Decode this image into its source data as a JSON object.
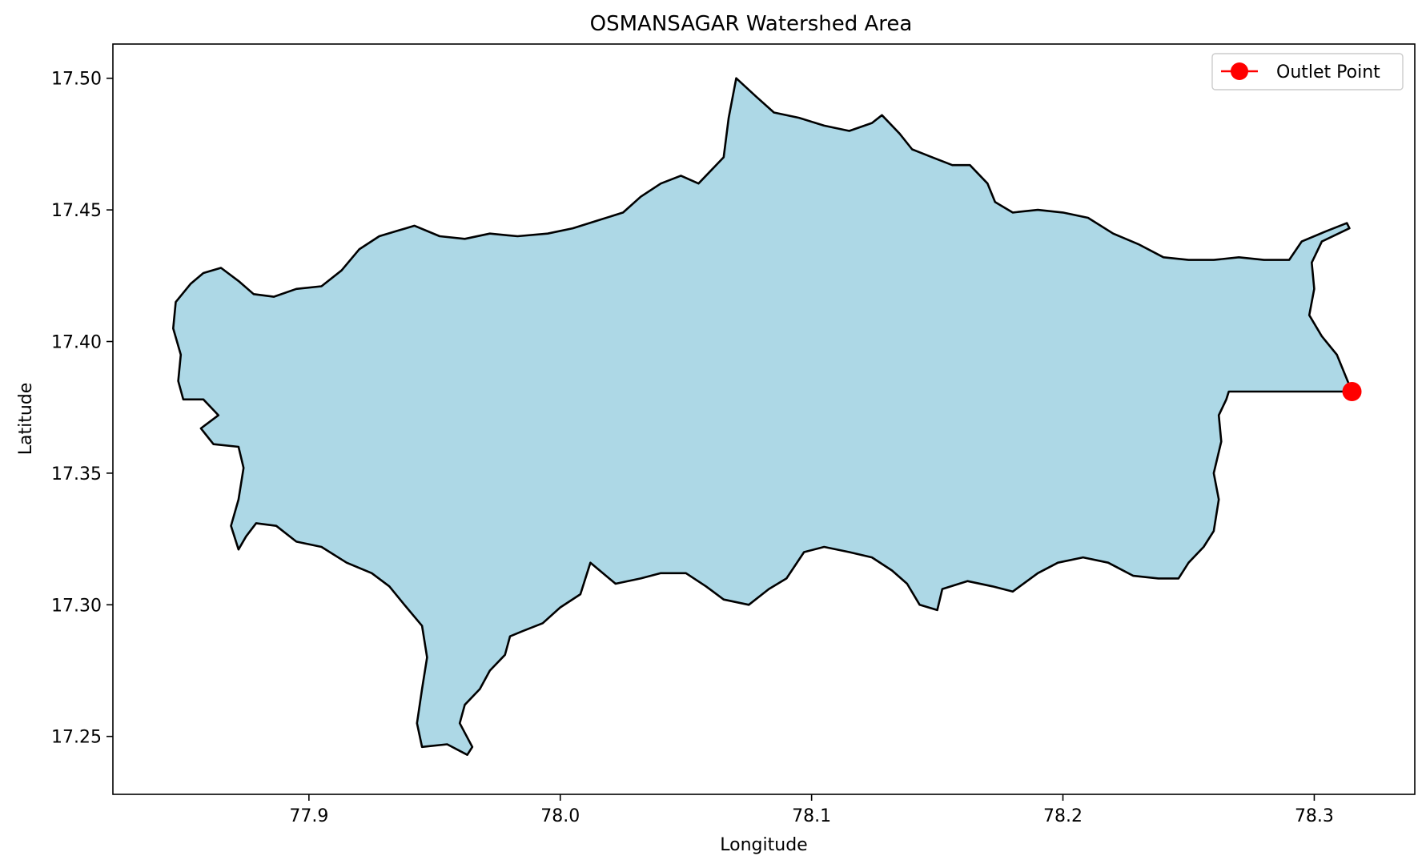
{
  "chart_data": {
    "type": "map",
    "title": "OSMANSAGAR Watershed Area",
    "xlabel": "Longitude",
    "ylabel": "Latitude",
    "xlim": [
      77.822,
      78.34
    ],
    "ylim": [
      17.228,
      17.513
    ],
    "xticks": [
      77.9,
      78.0,
      78.1,
      78.2,
      78.3
    ],
    "xtick_labels": [
      "77.9",
      "78.0",
      "78.1",
      "78.2",
      "78.3"
    ],
    "yticks": [
      17.25,
      17.3,
      17.35,
      17.4,
      17.45,
      17.5
    ],
    "ytick_labels": [
      "17.25",
      "17.30",
      "17.35",
      "17.40",
      "17.45",
      "17.50"
    ],
    "grid": false,
    "legend": {
      "placement": "top-right",
      "entries": [
        "Outlet Point"
      ]
    },
    "watershed": {
      "fill": "#add8e6",
      "edge": "#000000",
      "boundary": [
        [
          77.865,
          17.428
        ],
        [
          77.872,
          17.423
        ],
        [
          77.878,
          17.418
        ],
        [
          77.886,
          17.417
        ],
        [
          77.895,
          17.42
        ],
        [
          77.905,
          17.421
        ],
        [
          77.913,
          17.427
        ],
        [
          77.92,
          17.435
        ],
        [
          77.928,
          17.44
        ],
        [
          77.935,
          17.442
        ],
        [
          77.942,
          17.444
        ],
        [
          77.952,
          17.44
        ],
        [
          77.962,
          17.439
        ],
        [
          77.972,
          17.441
        ],
        [
          77.983,
          17.44
        ],
        [
          77.995,
          17.441
        ],
        [
          78.005,
          17.443
        ],
        [
          78.015,
          17.446
        ],
        [
          78.025,
          17.449
        ],
        [
          78.032,
          17.455
        ],
        [
          78.04,
          17.46
        ],
        [
          78.048,
          17.463
        ],
        [
          78.055,
          17.46
        ],
        [
          78.06,
          17.465
        ],
        [
          78.065,
          17.47
        ],
        [
          78.067,
          17.485
        ],
        [
          78.07,
          17.5
        ],
        [
          78.078,
          17.493
        ],
        [
          78.085,
          17.487
        ],
        [
          78.095,
          17.485
        ],
        [
          78.105,
          17.482
        ],
        [
          78.115,
          17.48
        ],
        [
          78.124,
          17.483
        ],
        [
          78.128,
          17.486
        ],
        [
          78.135,
          17.479
        ],
        [
          78.14,
          17.473
        ],
        [
          78.148,
          17.47
        ],
        [
          78.156,
          17.467
        ],
        [
          78.163,
          17.467
        ],
        [
          78.17,
          17.46
        ],
        [
          78.173,
          17.453
        ],
        [
          78.18,
          17.449
        ],
        [
          78.19,
          17.45
        ],
        [
          78.2,
          17.449
        ],
        [
          78.21,
          17.447
        ],
        [
          78.22,
          17.441
        ],
        [
          78.23,
          17.437
        ],
        [
          78.24,
          17.432
        ],
        [
          78.25,
          17.431
        ],
        [
          78.26,
          17.431
        ],
        [
          78.27,
          17.432
        ],
        [
          78.28,
          17.431
        ],
        [
          78.29,
          17.431
        ],
        [
          78.295,
          17.438
        ],
        [
          78.305,
          17.442
        ],
        [
          78.313,
          17.445
        ],
        [
          78.314,
          17.443
        ],
        [
          78.303,
          17.438
        ],
        [
          78.299,
          17.43
        ],
        [
          78.3,
          17.42
        ],
        [
          78.298,
          17.41
        ],
        [
          78.303,
          17.402
        ],
        [
          78.309,
          17.395
        ],
        [
          78.312,
          17.388
        ],
        [
          78.315,
          17.381
        ],
        [
          78.305,
          17.381
        ],
        [
          78.29,
          17.381
        ],
        [
          78.275,
          17.381
        ],
        [
          78.266,
          17.381
        ],
        [
          78.265,
          17.378
        ],
        [
          78.262,
          17.372
        ],
        [
          78.263,
          17.362
        ],
        [
          78.26,
          17.35
        ],
        [
          78.262,
          17.34
        ],
        [
          78.26,
          17.328
        ],
        [
          78.256,
          17.322
        ],
        [
          78.25,
          17.316
        ],
        [
          78.246,
          17.31
        ],
        [
          78.238,
          17.31
        ],
        [
          78.228,
          17.311
        ],
        [
          78.218,
          17.316
        ],
        [
          78.208,
          17.318
        ],
        [
          78.198,
          17.316
        ],
        [
          78.19,
          17.312
        ],
        [
          78.18,
          17.305
        ],
        [
          78.172,
          17.307
        ],
        [
          78.162,
          17.309
        ],
        [
          78.152,
          17.306
        ],
        [
          78.15,
          17.298
        ],
        [
          78.143,
          17.3
        ],
        [
          78.138,
          17.308
        ],
        [
          78.132,
          17.313
        ],
        [
          78.124,
          17.318
        ],
        [
          78.115,
          17.32
        ],
        [
          78.105,
          17.322
        ],
        [
          78.097,
          17.32
        ],
        [
          78.09,
          17.31
        ],
        [
          78.083,
          17.306
        ],
        [
          78.075,
          17.3
        ],
        [
          78.065,
          17.302
        ],
        [
          78.058,
          17.307
        ],
        [
          78.05,
          17.312
        ],
        [
          78.04,
          17.312
        ],
        [
          78.032,
          17.31
        ],
        [
          78.022,
          17.308
        ],
        [
          78.012,
          17.316
        ],
        [
          78.008,
          17.304
        ],
        [
          78.0,
          17.299
        ],
        [
          77.993,
          17.293
        ],
        [
          77.985,
          17.29
        ],
        [
          77.98,
          17.288
        ],
        [
          77.978,
          17.281
        ],
        [
          77.972,
          17.275
        ],
        [
          77.968,
          17.268
        ],
        [
          77.962,
          17.262
        ],
        [
          77.96,
          17.255
        ],
        [
          77.965,
          17.246
        ],
        [
          77.963,
          17.243
        ],
        [
          77.955,
          17.247
        ],
        [
          77.945,
          17.246
        ],
        [
          77.943,
          17.255
        ],
        [
          77.945,
          17.268
        ],
        [
          77.947,
          17.28
        ],
        [
          77.945,
          17.292
        ],
        [
          77.938,
          17.3
        ],
        [
          77.932,
          17.307
        ],
        [
          77.925,
          17.312
        ],
        [
          77.915,
          17.316
        ],
        [
          77.905,
          17.322
        ],
        [
          77.895,
          17.324
        ],
        [
          77.887,
          17.33
        ],
        [
          77.879,
          17.331
        ],
        [
          77.875,
          17.326
        ],
        [
          77.872,
          17.321
        ],
        [
          77.869,
          17.33
        ],
        [
          77.872,
          17.34
        ],
        [
          77.874,
          17.352
        ],
        [
          77.872,
          17.36
        ],
        [
          77.862,
          17.361
        ],
        [
          77.857,
          17.367
        ],
        [
          77.864,
          17.372
        ],
        [
          77.858,
          17.378
        ],
        [
          77.85,
          17.378
        ],
        [
          77.848,
          17.385
        ],
        [
          77.849,
          17.395
        ],
        [
          77.846,
          17.405
        ],
        [
          77.847,
          17.415
        ],
        [
          77.853,
          17.422
        ],
        [
          77.858,
          17.426
        ]
      ]
    },
    "outlet": {
      "label": "Outlet Point",
      "lon": 78.315,
      "lat": 17.381,
      "color": "#ff0000"
    }
  }
}
